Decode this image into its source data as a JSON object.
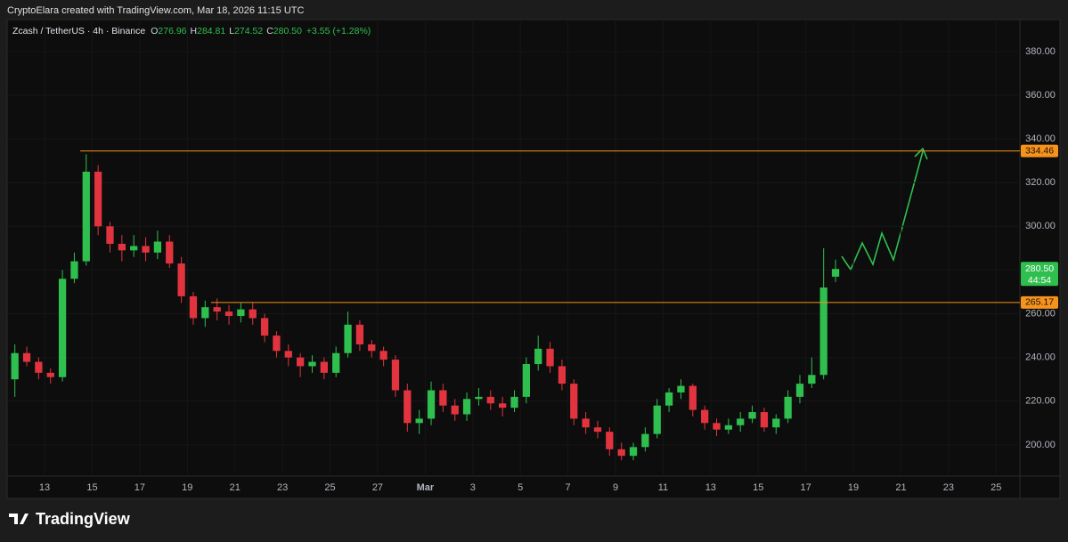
{
  "attribution": "CryptoElara created with TradingView.com, Mar 18, 2026 11:15 UTC",
  "brand": "TradingView",
  "chart_data": {
    "type": "candlestick",
    "symbol": "Zcash / TetherUS · 4h · Binance",
    "legend_letters": [
      "O",
      "H",
      "L",
      "C"
    ],
    "last": {
      "open": 276.96,
      "high": 284.81,
      "low": 274.52,
      "close": {
        "value": 280.5,
        "label": "280.50"
      },
      "change": "+3.55 (+1.28%)",
      "countdown": "44:54"
    },
    "up_color": "#2fbf4f",
    "down_color": "#e2343f",
    "x": [
      11.75,
      12.25,
      12.75,
      13.25,
      13.75,
      14.25,
      14.75,
      15.25,
      15.75,
      16.25,
      16.75,
      17.25,
      17.75,
      18.25,
      18.75,
      19.25,
      19.75,
      20.25,
      20.75,
      21.25,
      21.75,
      22.25,
      22.75,
      23.25,
      23.75,
      24.25,
      24.75,
      25.25,
      25.75,
      26.25,
      26.75,
      27.25,
      27.75,
      28.25,
      28.75,
      29.25,
      29.75,
      30.25,
      30.75,
      31.25,
      31.75,
      32.25,
      32.75,
      33.25,
      33.75,
      34.25,
      34.75,
      35.25,
      35.75,
      36.25,
      36.75,
      37.25,
      37.75,
      38.25,
      38.75,
      39.25,
      39.75,
      40.25,
      40.75,
      41.25,
      41.75,
      42.25,
      42.75,
      43.25,
      43.75,
      44.25,
      44.75,
      45.25,
      45.75,
      46.25
    ],
    "open": [
      230,
      242,
      238,
      233,
      231,
      276,
      284,
      325,
      300,
      292,
      289,
      291,
      288,
      293,
      283,
      268,
      258,
      263,
      261,
      259,
      262,
      258,
      250,
      243,
      240,
      236,
      238,
      233,
      242,
      255,
      246,
      243,
      239,
      225,
      210,
      212,
      225,
      218,
      214,
      221,
      222,
      219,
      217,
      222,
      237,
      244,
      236,
      228,
      212,
      208,
      206,
      198,
      195,
      199,
      205,
      218,
      224,
      227,
      216,
      210,
      207,
      209,
      212,
      215,
      208,
      212,
      222,
      228,
      232,
      276.96
    ],
    "high": [
      246,
      245,
      240,
      235,
      280,
      288,
      333,
      328,
      302,
      296,
      296,
      295,
      298,
      296,
      286,
      270,
      266,
      267,
      264,
      265,
      265,
      260,
      252,
      246,
      242,
      241,
      240,
      245,
      261,
      257,
      248,
      245,
      241,
      228,
      216,
      229,
      228,
      221,
      224,
      226,
      225,
      222,
      225,
      240,
      250,
      247,
      239,
      230,
      215,
      211,
      208,
      201,
      201,
      208,
      221,
      226,
      230,
      228,
      218,
      212,
      212,
      215,
      218,
      217,
      214,
      225,
      232,
      240,
      290,
      284.81
    ],
    "low": [
      222,
      236,
      230,
      228,
      229,
      274,
      282,
      296,
      288,
      284,
      286,
      284,
      285,
      281,
      265,
      255,
      254,
      257,
      255,
      256,
      255,
      247,
      240,
      236,
      231,
      233,
      230,
      231,
      240,
      243,
      240,
      236,
      222,
      206,
      205,
      209,
      215,
      211,
      211,
      218,
      216,
      213,
      215,
      219,
      234,
      233,
      225,
      209,
      205,
      203,
      195,
      193,
      193,
      197,
      203,
      215,
      221,
      213,
      207,
      204,
      205,
      206,
      210,
      206,
      205,
      210,
      219,
      226,
      230,
      274.52
    ],
    "close": [
      242,
      238,
      233,
      231,
      276,
      284,
      325,
      300,
      292,
      289,
      291,
      288,
      293,
      283,
      268,
      258,
      263,
      261,
      259,
      262,
      258,
      250,
      243,
      240,
      236,
      238,
      233,
      242,
      255,
      246,
      243,
      239,
      225,
      210,
      212,
      225,
      218,
      214,
      221,
      222,
      219,
      217,
      222,
      237,
      244,
      236,
      228,
      212,
      208,
      206,
      198,
      195,
      199,
      205,
      218,
      224,
      227,
      216,
      210,
      207,
      209,
      212,
      215,
      208,
      212,
      222,
      228,
      232,
      272,
      280.5
    ],
    "levels": [
      {
        "value": 334.46,
        "from": 14.5,
        "color": "#f7931a"
      },
      {
        "value": 265.17,
        "from": 20,
        "color": "#f7931a"
      }
    ],
    "xlim": [
      11.5,
      54
    ],
    "xticks": [
      {
        "value": 13,
        "label": "13"
      },
      {
        "value": 15,
        "label": "15"
      },
      {
        "value": 17,
        "label": "17"
      },
      {
        "value": 19,
        "label": "19"
      },
      {
        "value": 21,
        "label": "21"
      },
      {
        "value": 23,
        "label": "23"
      },
      {
        "value": 25,
        "label": "25"
      },
      {
        "value": 27,
        "label": "27"
      },
      {
        "value": 29,
        "label": "Mar"
      },
      {
        "value": 31,
        "label": "3"
      },
      {
        "value": 33,
        "label": "5"
      },
      {
        "value": 35,
        "label": "7"
      },
      {
        "value": 37,
        "label": "9"
      },
      {
        "value": 39,
        "label": "11"
      },
      {
        "value": 41,
        "label": "13"
      },
      {
        "value": 43,
        "label": "15"
      },
      {
        "value": 45,
        "label": "17"
      },
      {
        "value": 47,
        "label": "19"
      },
      {
        "value": 49,
        "label": "21"
      },
      {
        "value": 51,
        "label": "23"
      },
      {
        "value": 53,
        "label": "25"
      }
    ],
    "ylim": [
      185.7,
      394.6
    ],
    "yticks": [
      {
        "value": 200,
        "label": "200.00"
      },
      {
        "value": 220,
        "label": "220.00"
      },
      {
        "value": 240,
        "label": "240.00"
      },
      {
        "value": 260,
        "label": "260.00"
      },
      {
        "value": 280,
        "label": "280.00"
      },
      {
        "value": 300,
        "label": "300.00"
      },
      {
        "value": 320,
        "label": "320.00"
      },
      {
        "value": 340,
        "label": "340.00"
      },
      {
        "value": 360,
        "label": "360.00"
      },
      {
        "value": 380,
        "label": "380.00"
      }
    ],
    "grid": true
  }
}
